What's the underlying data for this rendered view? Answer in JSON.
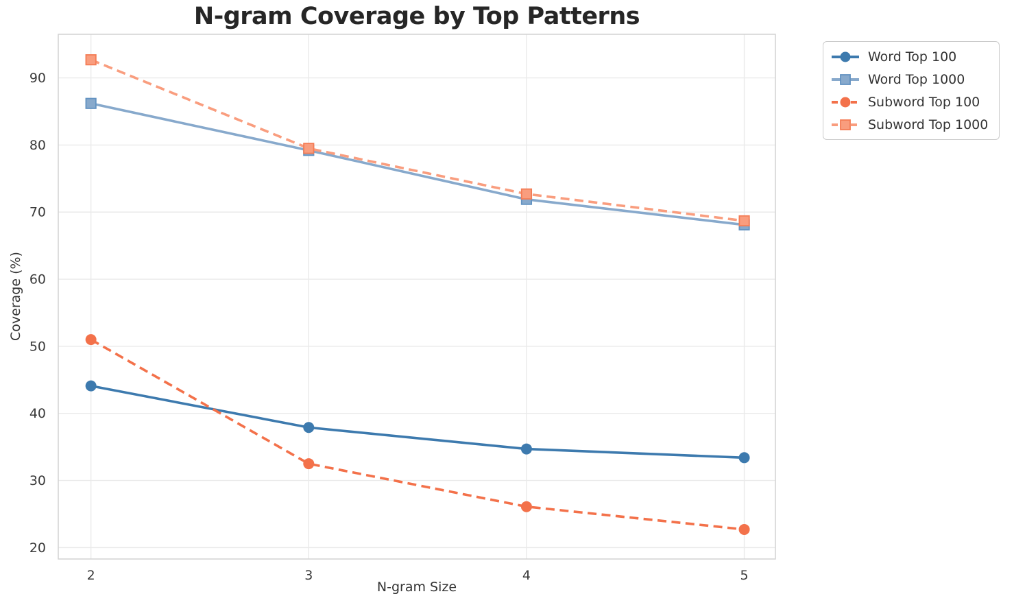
{
  "chart_data": {
    "type": "line",
    "title": "N-gram Coverage by Top Patterns",
    "xlabel": "N-gram Size",
    "ylabel": "Coverage (%)",
    "x": [
      2,
      3,
      4,
      5
    ],
    "xticks": [
      "2",
      "3",
      "4",
      "5"
    ],
    "yticks": [
      "20",
      "30",
      "40",
      "50",
      "60",
      "70",
      "80",
      "90"
    ],
    "ytick_values": [
      20,
      30,
      40,
      50,
      60,
      70,
      80,
      90
    ],
    "xlim": [
      1.85,
      5.143
    ],
    "ylim": [
      18.3,
      96.5
    ],
    "grid": true,
    "legend_position": "outside-top-right",
    "series": [
      {
        "name": "Word Top 100",
        "values": [
          44.1,
          37.9,
          34.7,
          33.4
        ],
        "color": "#3d7aae",
        "edge_color": "#3d7aae",
        "line_style": "solid",
        "marker": "circle"
      },
      {
        "name": "Word Top 1000",
        "values": [
          86.2,
          79.2,
          71.9,
          68.1
        ],
        "color": "#87a9cc",
        "edge_color": "#6292c1",
        "line_style": "solid",
        "marker": "square"
      },
      {
        "name": "Subword Top 100",
        "values": [
          51.0,
          32.5,
          26.1,
          22.7
        ],
        "color": "#f3714a",
        "edge_color": "#f3714a",
        "line_style": "dashed",
        "marker": "circle"
      },
      {
        "name": "Subword Top 1000",
        "values": [
          92.7,
          79.5,
          72.7,
          68.7
        ],
        "color": "#f99d7e",
        "edge_color": "#f47c55",
        "line_style": "dashed",
        "marker": "square"
      }
    ],
    "styles": {
      "grid_color": "#eaeaea",
      "spine_color": "#d2d2d2",
      "tick_label_color": "#3a3a3a",
      "title_color": "#262626",
      "axis_label_color": "#333333",
      "background": "#ffffff"
    }
  }
}
